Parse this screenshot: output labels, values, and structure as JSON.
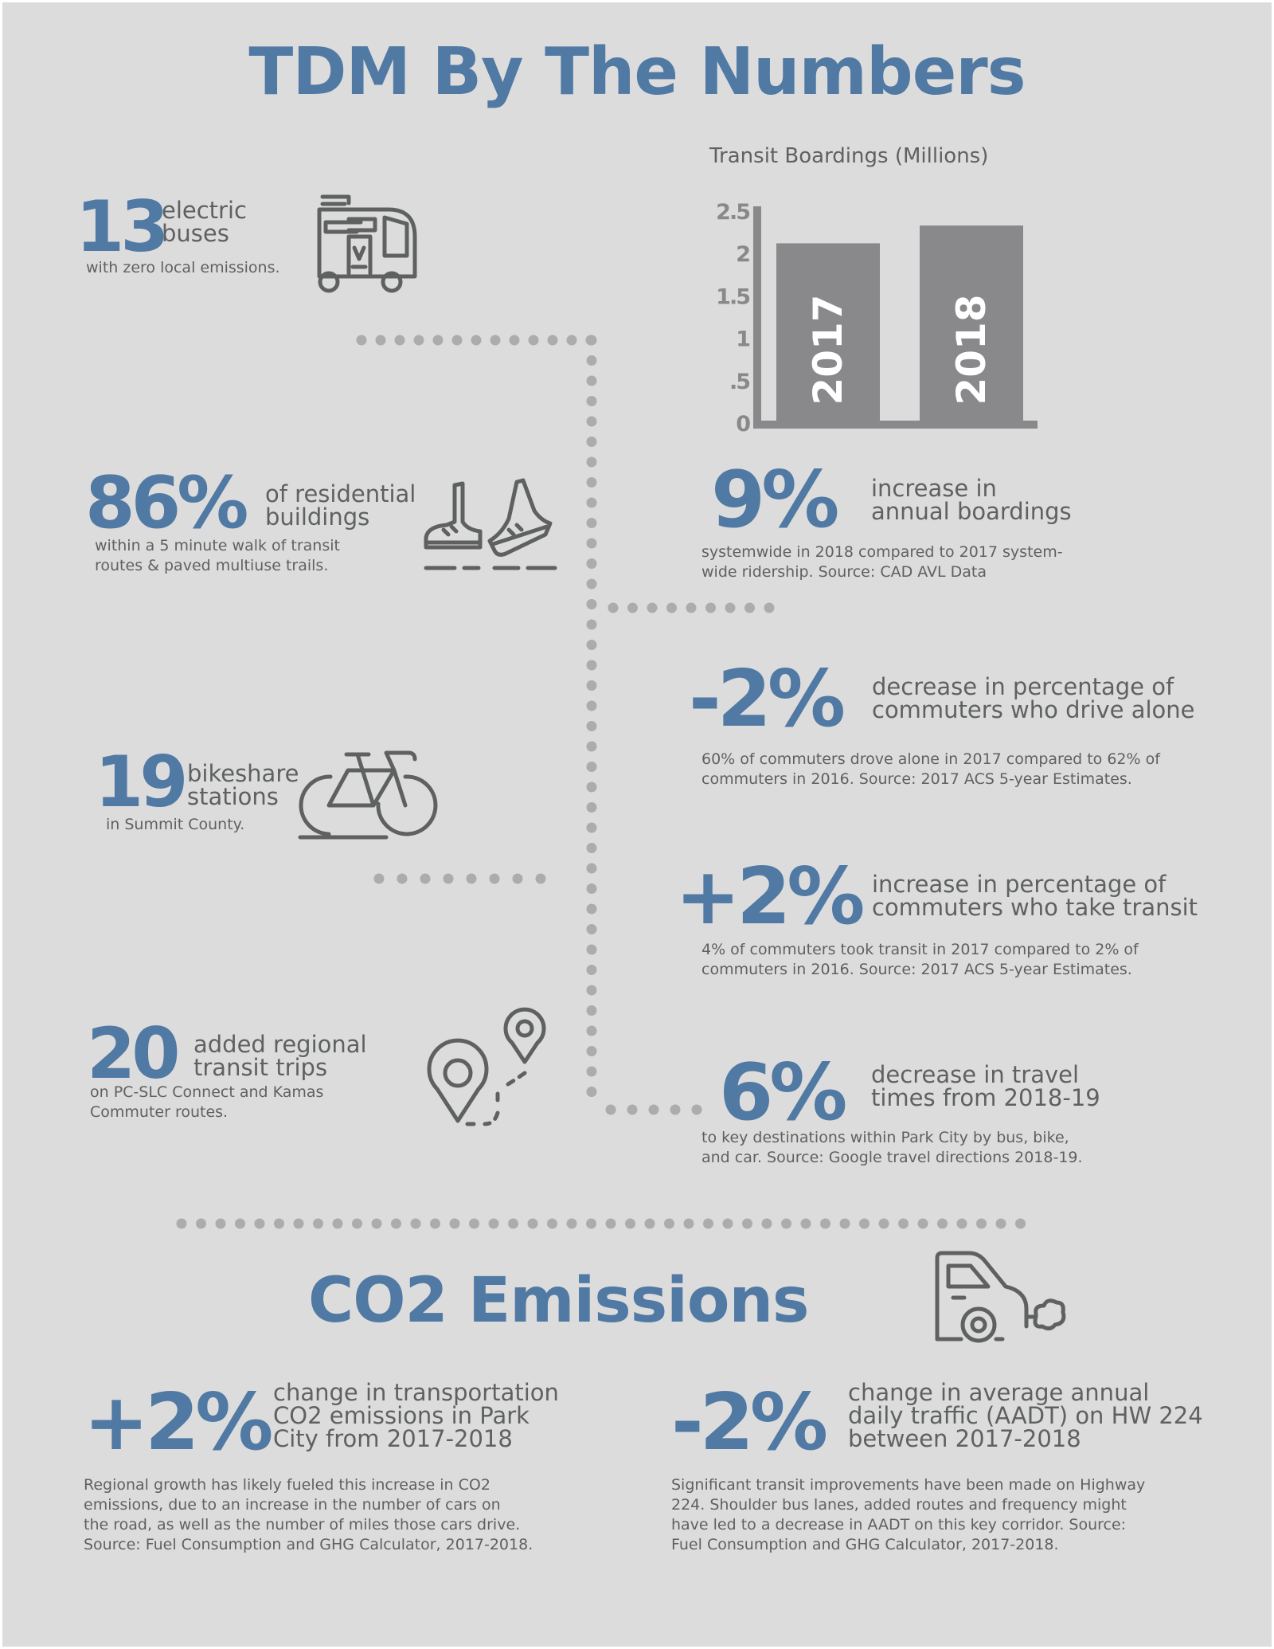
{
  "title": "TDM By The Numbers",
  "colors": {
    "accent": "#5079a3",
    "text": "#5f6161",
    "background": "#dcdcdc",
    "bar": "#89898b",
    "dots": "#acacac"
  },
  "left_stats": [
    {
      "value": "13",
      "label_lines": [
        "electric",
        "buses"
      ],
      "sub_lines": [
        "with zero local emissions."
      ],
      "icon": "bus-icon"
    },
    {
      "value": "86%",
      "label_lines": [
        "of residential",
        "buildings"
      ],
      "sub_lines": [
        "within a 5 minute walk of transit",
        "routes & paved multiuse trails."
      ],
      "icon": "shoes-icon"
    },
    {
      "value": "19",
      "label_lines": [
        "bikeshare",
        "stations"
      ],
      "sub_lines": [
        "in Summit County."
      ],
      "icon": "bicycle-icon"
    },
    {
      "value": "20",
      "label_lines": [
        "added regional",
        "transit trips"
      ],
      "sub_lines": [
        "on PC-SLC Connect and Kamas",
        "Commuter routes."
      ],
      "icon": "route-pins-icon"
    }
  ],
  "chart_data": {
    "type": "bar",
    "title": "Transit Boardings (Millions)",
    "categories": [
      "2017",
      "2018"
    ],
    "values": [
      2.12,
      2.33
    ],
    "yticks": [
      "0",
      ".5",
      "1",
      "1.5",
      "2",
      "2.5"
    ],
    "ylim": [
      0,
      2.5
    ],
    "legend": "none",
    "grid": false
  },
  "right_stats": [
    {
      "value": "9%",
      "label_lines": [
        "increase in",
        "annual boardings"
      ],
      "sub_lines": [
        "systemwide in 2018 compared to 2017 system-",
        "wide ridership. Source: CAD AVL Data"
      ]
    },
    {
      "value": "-2%",
      "label_lines": [
        "decrease in percentage of",
        "commuters who drive alone"
      ],
      "sub_lines": [
        "60% of commuters drove alone in 2017 compared to 62% of",
        "commuters in 2016. Source: 2017 ACS 5-year Estimates."
      ]
    },
    {
      "value": "+2%",
      "label_lines": [
        "increase in percentage of",
        "commuters who take transit"
      ],
      "sub_lines": [
        "4% of commuters took transit in 2017 compared to 2% of",
        "commuters in 2016. Source: 2017 ACS 5-year Estimates."
      ]
    },
    {
      "value": "6%",
      "label_lines": [
        "decrease in travel",
        "times from 2018-19"
      ],
      "sub_lines": [
        "to key destinations within Park City by bus, bike,",
        "and car. Source: Google travel directions 2018-19."
      ]
    }
  ],
  "co2": {
    "title": "CO2 Emissions",
    "icon": "car-exhaust-icon",
    "stats": [
      {
        "value": "+2%",
        "label_lines": [
          "change in transportation",
          "CO2 emissions in Park",
          "City from 2017-2018"
        ],
        "sub_lines": [
          "Regional growth has likely fueled this increase in CO2",
          "emissions, due to an increase in the number of cars on",
          "the road, as well as the number of miles those cars drive.",
          "Source: Fuel Consumption and GHG Calculator, 2017-2018."
        ]
      },
      {
        "value": "-2%",
        "label_lines": [
          "change in average annual",
          "daily traffic (AADT) on HW 224",
          "between 2017-2018"
        ],
        "sub_lines": [
          "Significant transit improvements have been made on Highway",
          "224. Shoulder bus lanes, added routes and frequency might",
          "have led to a decrease in AADT on this key corridor. Source:",
          "Fuel Consumption and GHG Calculator, 2017-2018."
        ]
      }
    ]
  }
}
